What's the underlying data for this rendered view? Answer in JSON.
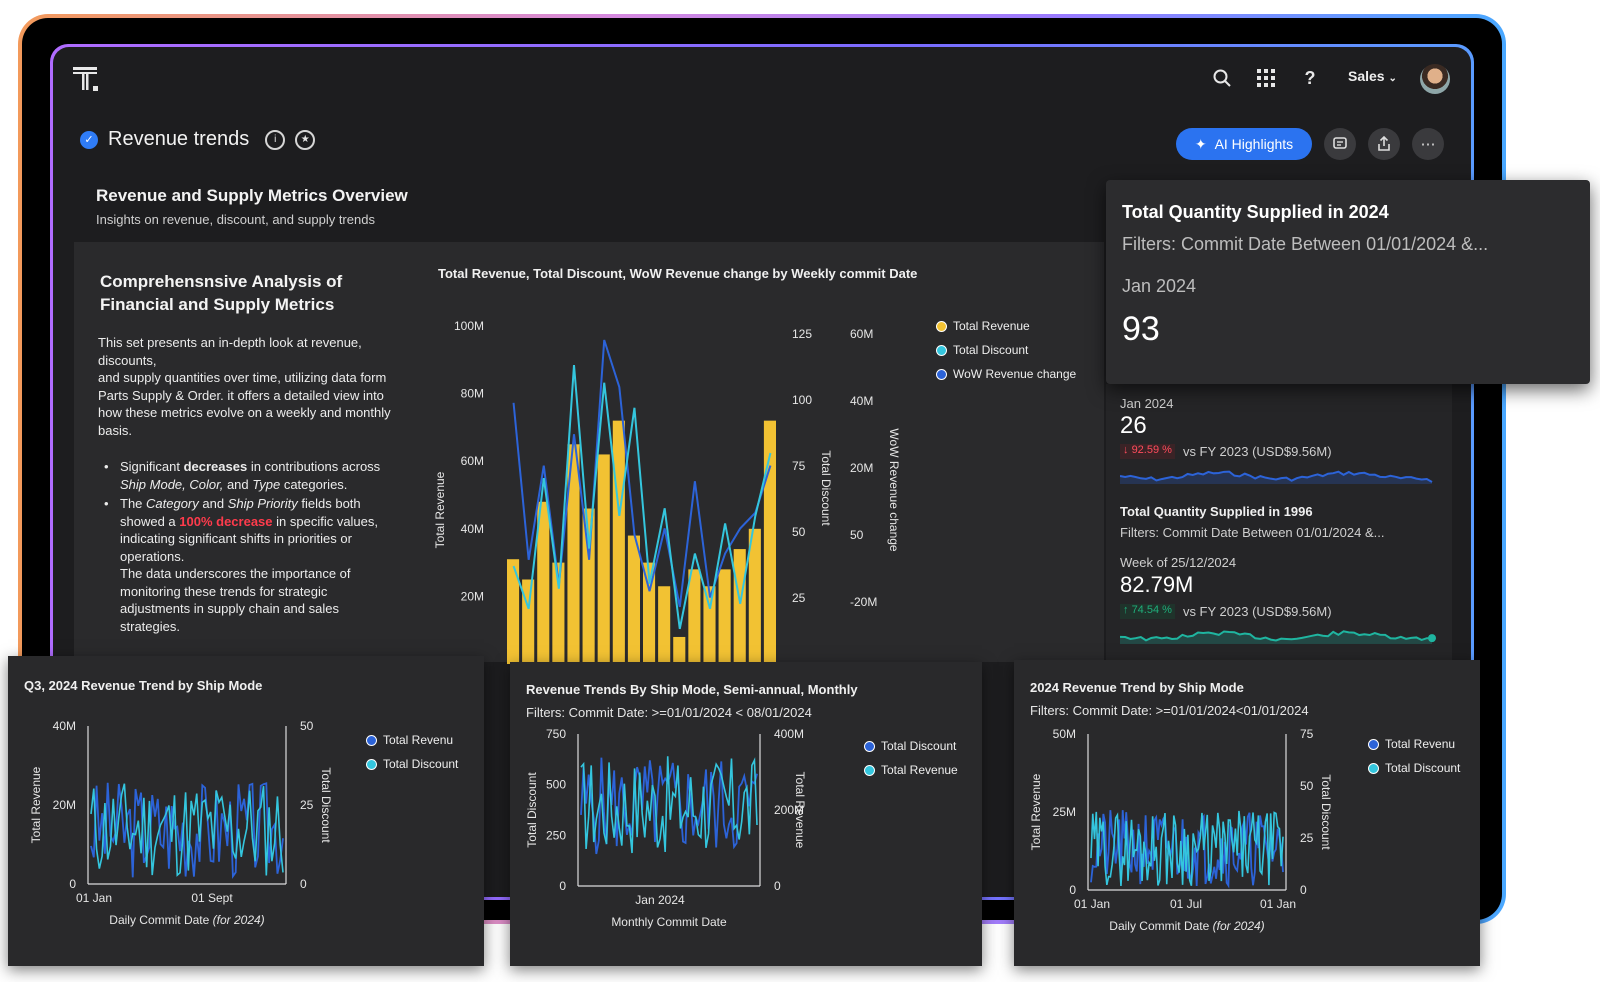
{
  "app": {
    "org_label": "Sales"
  },
  "header": {
    "title": "Revenue trends",
    "ai_button": "AI Highlights"
  },
  "overview": {
    "title": "Revenue and Supply Metrics Overview",
    "subtitle": "Insights on revenue, discount, and supply trends"
  },
  "description": {
    "title": "Comprehensnsive Analysis of Financial and Supply Metrics",
    "para1": "This set presents an in-depth look at revenue, discounts,",
    "para2": "and supply quantities over time, utilizing data form Parts Supply & Order.  it offers a detailed view into how these metrics evolve on a weekly and monthly basis.",
    "b1_pre": "Significant ",
    "b1_bold": "decreases",
    "b1_mid": " in contributions across ",
    "b1_it": "Ship Mode, Color,",
    "b1_and": " and ",
    "b1_it2": "Type",
    "b1_post": " categories.",
    "b2_pre": "The ",
    "b2_it": "Category",
    "b2_and": " and ",
    "b2_it2": "Ship Priority",
    "b2_mid": " fields both showed a ",
    "b2_red": "100% decrease",
    "b2_post": " in specific values, indicating significant shifts in priorities or operations.",
    "b2_extra": "The data underscores the importance of monitoring these trends for strategic adjustments in supply chain and sales strategies."
  },
  "kpi": {
    "title": "Total Quantity Supplied in 2024",
    "filter": "Filters: Commit Date Between 01/01/2024 &...",
    "period": "Jan 2024",
    "value": "93"
  },
  "side": {
    "m1_period": "Jan 2024",
    "m1_value": "26",
    "m1_change": "92.59 %",
    "m1_vs": "vs FY 2023 (USD$9.56M)",
    "m2_title": "Total Quantity Supplied in 1996",
    "m2_filter": "Filters: Commit Date Between 01/01/2024 &...",
    "m2_period": "Week of 25/12/2024",
    "m2_value": "82.79M",
    "m2_change": "74.54 %",
    "m2_vs": "vs FY 2023 (USD$9.56M)"
  },
  "colors": {
    "accent": "#2b73f0",
    "bar": "#f2c233",
    "cyan": "#34c6de",
    "blue": "#2c63d8",
    "down": "#ff4b5c",
    "up": "#1fae7a"
  },
  "chart_data": [
    {
      "type": "bar",
      "title": "Total Revenue, Total Discount, WoW Revenue change by Weekly commit Date",
      "ylabel": "Total Revenue",
      "y2label": "Total Discount",
      "y3label": "WoW Revenue change",
      "yticks": [
        "100M",
        "80M",
        "60M",
        "40M",
        "20M",
        "0"
      ],
      "y2ticks": [
        "125",
        "100",
        "75",
        "50",
        "25",
        "0"
      ],
      "y3ticks": [
        "60M",
        "40M",
        "20M",
        "50",
        "-20M"
      ],
      "ylim": [
        0,
        100
      ],
      "legend": [
        "Total Revenue",
        "Total Discount",
        "WoW Revenue change"
      ],
      "series": [
        {
          "name": "Total Revenue",
          "values": [
            31,
            25,
            48,
            30,
            65,
            46,
            62,
            72,
            38,
            30,
            23,
            8,
            28,
            23,
            28,
            34,
            40,
            72
          ]
        },
        {
          "name": "Total Discount",
          "values": [
            35,
            18,
            70,
            26,
            115,
            42,
            108,
            55,
            98,
            28,
            58,
            10,
            40,
            18,
            52,
            20,
            55,
            80
          ]
        },
        {
          "name": "WoW Revenue change",
          "values": [
            80,
            30,
            60,
            22,
            70,
            30,
            100,
            85,
            38,
            20,
            40,
            15,
            55,
            18,
            32,
            40,
            45,
            60
          ]
        }
      ]
    },
    {
      "type": "line",
      "title": "Q3, 2024 Revenue Trend by Ship Mode",
      "xlabel": "Daily Commit Date",
      "xlabel_note": "(for 2024)",
      "ylabel": "Total Revenue",
      "y2label": "Total Discount",
      "xticks": [
        "01 Jan",
        "01 Sept"
      ],
      "yticks": [
        "40M",
        "20M",
        "0"
      ],
      "y2ticks": [
        "50",
        "25",
        "0"
      ],
      "legend": [
        "Total Revenu",
        "Total Discount"
      ]
    },
    {
      "type": "line",
      "title": "Revenue Trends By Ship Mode, Semi-annual, Monthly",
      "subtitle": "Filters: Commit Date: >=01/01/2024 < 08/01/2024",
      "xlabel": "Monthly Commit Date",
      "ylabel": "Total Discount",
      "y2label": "Total Revenue",
      "xticks": [
        "Jan 2024"
      ],
      "yticks": [
        "750",
        "500",
        "250",
        "0"
      ],
      "y2ticks": [
        "400M",
        "200M",
        "0"
      ],
      "legend": [
        "Total Discount",
        "Total Revenue"
      ]
    },
    {
      "type": "bar",
      "title": "2024 Revenue Trend by Ship Mode",
      "subtitle": "Filters: Commit Date: >=01/01/2024<01/01/2024",
      "xlabel": "Daily Commit Date",
      "xlabel_note": "(for 2024)",
      "ylabel": "Total Revenue",
      "y2label": "Total Discount",
      "xticks": [
        "01 Jan",
        "01 Jul",
        "01 Jan"
      ],
      "yticks": [
        "50M",
        "25M",
        "0"
      ],
      "y2ticks": [
        "75",
        "50",
        "25",
        "0"
      ],
      "legend": [
        "Total Revenu",
        "Total Discount"
      ]
    }
  ]
}
